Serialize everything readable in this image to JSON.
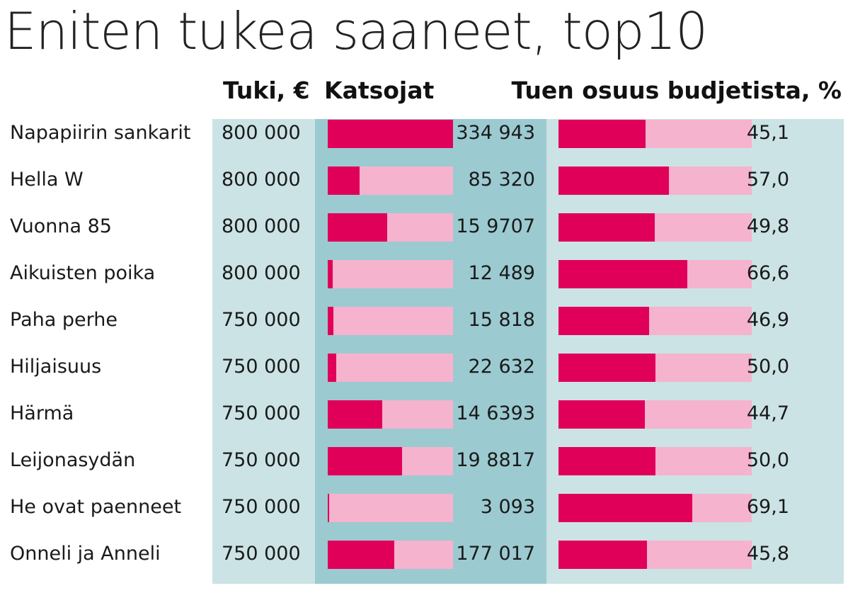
{
  "colors": {
    "column_light": "#cbe3e5",
    "column_dark": "#9ccad1",
    "bar_fill": "#e0005a",
    "bar_track": "#f5b3cd"
  },
  "chart_data": {
    "type": "bar",
    "title": "Eniten tukea saaneet, top10",
    "columns": {
      "tuki": "Tuki, €",
      "katsojat": "Katsojat",
      "osuus": "Tuen osuus budjetista, %"
    },
    "rows": [
      {
        "name": "Napapiirin sankarit",
        "tuki": "800 000",
        "katsojat": 334943,
        "katsojat_label": "334 943",
        "osuus": 45.1,
        "osuus_label": "45,1"
      },
      {
        "name": "Hella W",
        "tuki": "800 000",
        "katsojat": 85320,
        "katsojat_label": "85 320",
        "osuus": 57.0,
        "osuus_label": "57,0"
      },
      {
        "name": "Vuonna 85",
        "tuki": "800 000",
        "katsojat": 159707,
        "katsojat_label": "15 9707",
        "osuus": 49.8,
        "osuus_label": "49,8"
      },
      {
        "name": "Aikuisten poika",
        "tuki": "800 000",
        "katsojat": 12489,
        "katsojat_label": "12 489",
        "osuus": 66.6,
        "osuus_label": "66,6"
      },
      {
        "name": "Paha perhe",
        "tuki": "750 000",
        "katsojat": 15818,
        "katsojat_label": "15 818",
        "osuus": 46.9,
        "osuus_label": "46,9"
      },
      {
        "name": "Hiljaisuus",
        "tuki": "750 000",
        "katsojat": 22632,
        "katsojat_label": "22 632",
        "osuus": 50.0,
        "osuus_label": "50,0"
      },
      {
        "name": "Härmä",
        "tuki": "750 000",
        "katsojat": 146393,
        "katsojat_label": "14 6393",
        "osuus": 44.7,
        "osuus_label": "44,7"
      },
      {
        "name": "Leijonasydän",
        "tuki": "750 000",
        "katsojat": 198817,
        "katsojat_label": "19 8817",
        "osuus": 50.0,
        "osuus_label": "50,0"
      },
      {
        "name": "He ovat paenneet",
        "tuki": "750 000",
        "katsojat": 3093,
        "katsojat_label": "3 093",
        "osuus": 69.1,
        "osuus_label": "69,1"
      },
      {
        "name": "Onneli ja Anneli",
        "tuki": "750 000",
        "katsojat": 177017,
        "katsojat_label": "177 017",
        "osuus": 45.8,
        "osuus_label": "45,8"
      }
    ],
    "katsojat_max": 334943,
    "osuus_max": 100
  }
}
